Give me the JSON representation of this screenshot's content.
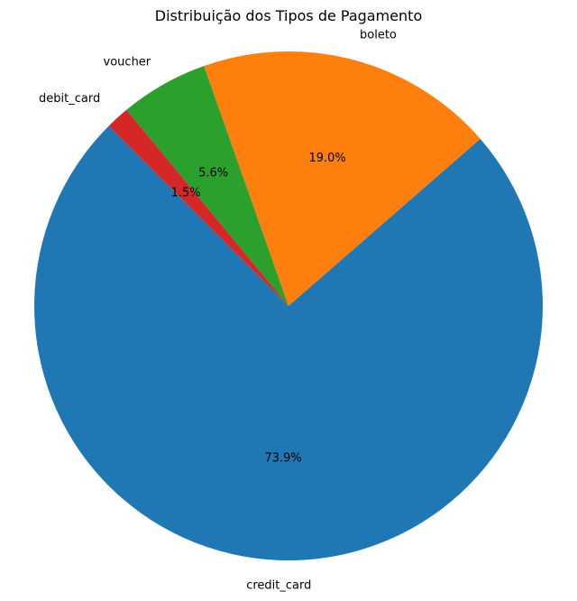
{
  "chart_data": {
    "type": "pie",
    "title": "Distribuição dos Tipos de Pagamento",
    "start_angle_deg": 135,
    "direction": "counterclockwise",
    "slices": [
      {
        "label": "credit_card",
        "value": 73.9,
        "pct_label": "73.9%",
        "color": "#1f77b4"
      },
      {
        "label": "boleto",
        "value": 19.0,
        "pct_label": "19.0%",
        "color": "#ff7f0e"
      },
      {
        "label": "voucher",
        "value": 5.6,
        "pct_label": "5.6%",
        "color": "#2ca02c"
      },
      {
        "label": "debit_card",
        "value": 1.5,
        "pct_label": "1.5%",
        "color": "#d62728"
      }
    ]
  }
}
